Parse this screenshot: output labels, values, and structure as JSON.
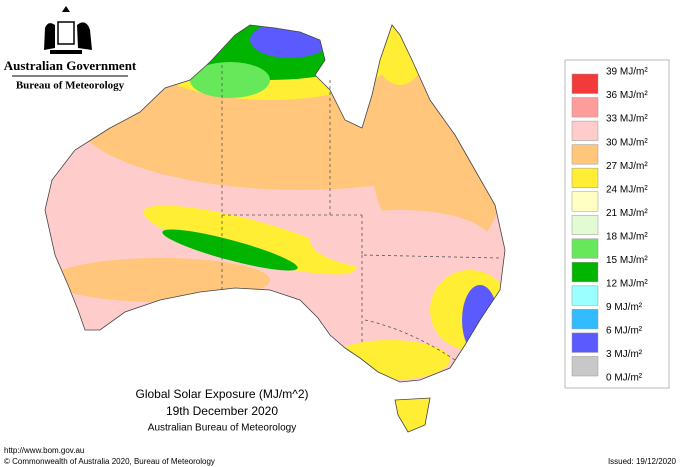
{
  "header": {
    "government": "Australian Government",
    "bureau": "Bureau of Meteorology"
  },
  "caption": {
    "title": "Global Solar Exposure (MJ/m^2)",
    "date": "19th December 2020",
    "source": "Australian Bureau of Meteorology"
  },
  "legend": {
    "labels": [
      "39 MJ/m²",
      "36 MJ/m²",
      "33 MJ/m²",
      "30 MJ/m²",
      "27 MJ/m²",
      "24 MJ/m²",
      "21 MJ/m²",
      "18 MJ/m²",
      "15 MJ/m²",
      "12 MJ/m²",
      "9 MJ/m²",
      "6 MJ/m²",
      "3 MJ/m²",
      "0 MJ/m²"
    ],
    "colors": [
      "#f23a3a",
      "#ff9c9c",
      "#ffcccc",
      "#ffc67c",
      "#ffee33",
      "#ffffc4",
      "#e2fbd2",
      "#66e85a",
      "#00b400",
      "#9cffff",
      "#33bbff",
      "#5a5aff",
      "#c8c8c8"
    ]
  },
  "footer": {
    "url": "http://www.bom.gov.au",
    "copyright": "© Commonwealth of Australia 2020, Bureau of Meteorology",
    "issued": "Issued: 19/12/2020"
  }
}
